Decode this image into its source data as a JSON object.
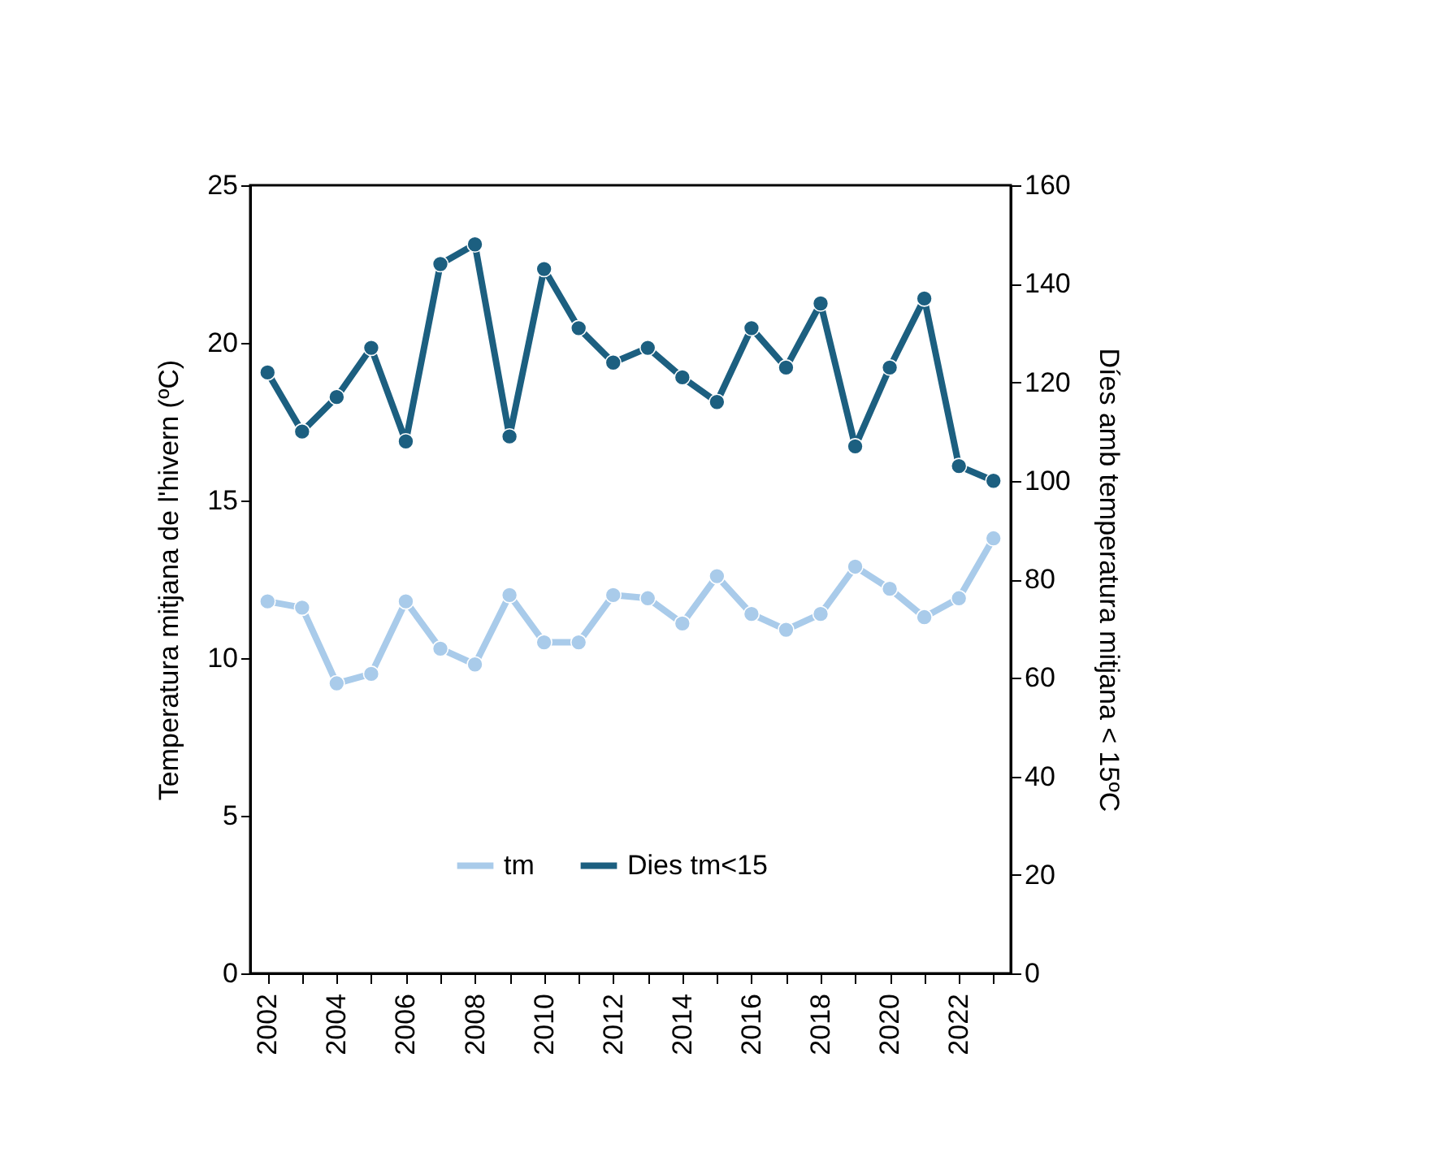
{
  "chart_data": {
    "type": "line",
    "categories": [
      "2002",
      null,
      "2004",
      null,
      "2006",
      null,
      "2008",
      null,
      "2010",
      null,
      "2012",
      null,
      "2014",
      null,
      "2016",
      null,
      "2018",
      null,
      "2020",
      null,
      "2022",
      null
    ],
    "series": [
      {
        "name": "tm",
        "color": "#a9cbea",
        "values": [
          11.8,
          11.6,
          9.2,
          9.5,
          11.8,
          10.3,
          9.8,
          12.0,
          10.5,
          10.5,
          12.0,
          11.9,
          11.1,
          12.6,
          11.4,
          10.9,
          11.4,
          12.9,
          12.2,
          11.3,
          11.9,
          13.8
        ]
      },
      {
        "name": "Dies tm<15",
        "color": "#1c5f80",
        "axis": "y2",
        "values": [
          122,
          110,
          117,
          127,
          108,
          144,
          148,
          109,
          143,
          131,
          124,
          127,
          121,
          116,
          131,
          123,
          136,
          107,
          123,
          137,
          103,
          100
        ]
      }
    ],
    "ylabel": "Temperatura mitjana de l'hivern (ºC)",
    "y2label": "Díes amb temperatura mitjana < 15ºC",
    "ylim": [
      0,
      25
    ],
    "yticks": [
      0,
      5,
      10,
      15,
      20,
      25
    ],
    "y2lim": [
      0,
      160
    ],
    "y2ticks": [
      0,
      20,
      40,
      60,
      80,
      100,
      120,
      140,
      160
    ],
    "marker": "circle",
    "line_style": "solid",
    "legend": "bottom",
    "grid": false
  }
}
